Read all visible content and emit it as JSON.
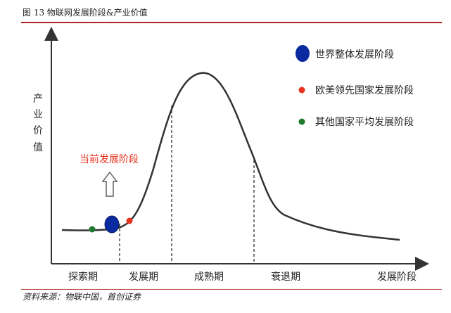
{
  "figure": {
    "title": "图 13 物联网发展阶段&产业价值",
    "source": "资料来源：物联中国，首创证券"
  },
  "y_axis_label": [
    "产",
    "业",
    "价",
    "值"
  ],
  "x_axis_label": "发展阶段",
  "stages": [
    "探索期",
    "发展期",
    "成熟期",
    "衰退期"
  ],
  "current_stage_label": "当前发展阶段",
  "legend": [
    {
      "label": "世界整体发展阶段",
      "color": "#0a2aa0"
    },
    {
      "label": "欧美领先国家发展阶段",
      "color": "#e8321e"
    },
    {
      "label": "其他国家平均发展阶段",
      "color": "#1e7a2e"
    }
  ],
  "colors": {
    "curve": "#333333",
    "highlight_text": "#e8321e",
    "arrow": "#555555"
  }
}
